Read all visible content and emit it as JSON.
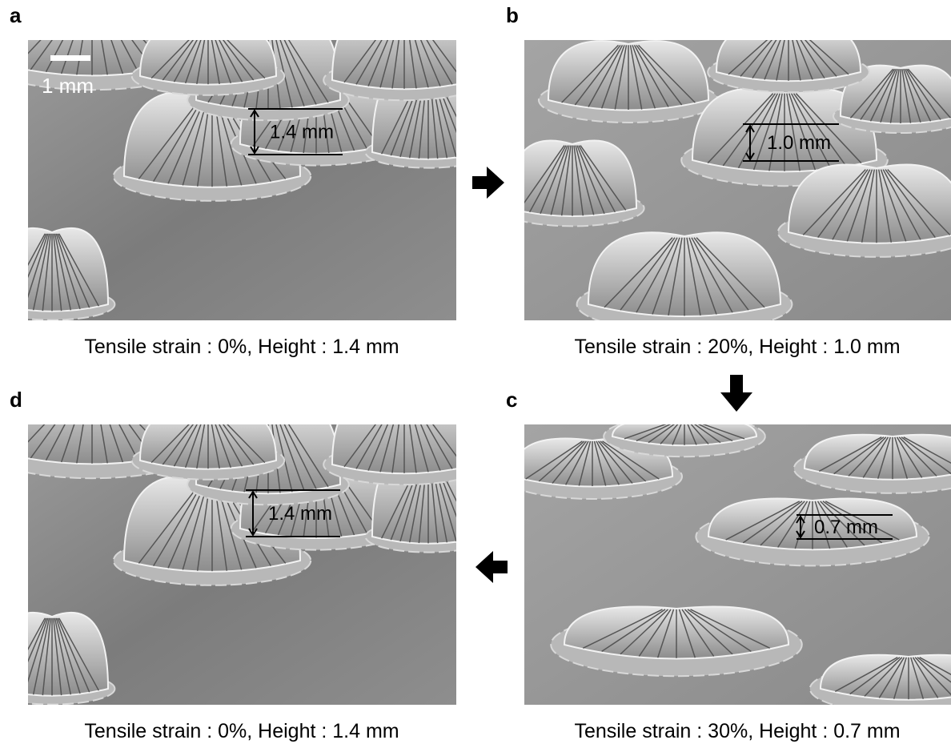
{
  "panels": [
    {
      "label": "a",
      "scale_bar": "1 mm",
      "measurement": "1.4 mm",
      "caption": "Tensile strain : 0%, Height : 1.4 mm"
    },
    {
      "label": "b",
      "measurement": "1.0 mm",
      "caption": "Tensile strain : 20%, Height : 1.0 mm"
    },
    {
      "label": "c",
      "measurement": "0.7 mm",
      "caption": "Tensile strain : 30%, Height : 0.7 mm"
    },
    {
      "label": "d",
      "measurement": "1.4 mm",
      "caption": "Tensile strain : 0%, Height : 1.4 mm"
    }
  ]
}
